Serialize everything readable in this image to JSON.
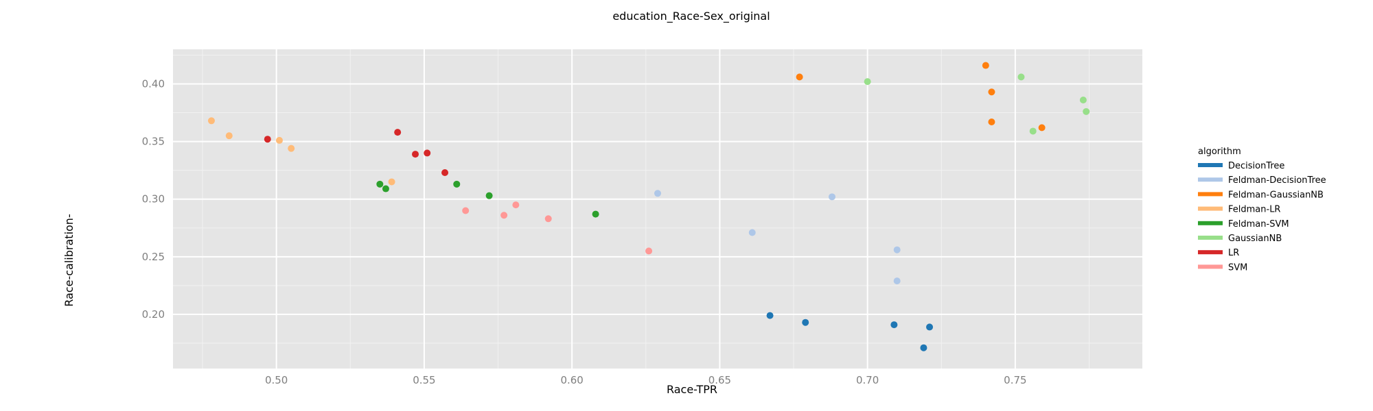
{
  "chart_data": {
    "type": "scatter",
    "title": "education_Race-Sex_original",
    "xlabel": "Race-TPR",
    "ylabel": "Race-calibration-",
    "xlim": [
      0.465,
      0.793
    ],
    "ylim": [
      0.153,
      0.43
    ],
    "x_ticks": [
      0.5,
      0.55,
      0.6,
      0.65,
      0.7,
      0.75
    ],
    "x_tick_labels": [
      "0.50",
      "0.55",
      "0.60",
      "0.65",
      "0.70",
      "0.75"
    ],
    "y_ticks": [
      0.2,
      0.25,
      0.3,
      0.35,
      0.4
    ],
    "y_tick_labels": [
      "0.20",
      "0.25",
      "0.30",
      "0.35",
      "0.40"
    ],
    "grid": true,
    "legend": {
      "title": "algorithm",
      "position": "right"
    },
    "series": [
      {
        "name": "DecisionTree",
        "color": "#1f77b4",
        "points": [
          [
            0.667,
            0.199
          ],
          [
            0.679,
            0.193
          ],
          [
            0.709,
            0.191
          ],
          [
            0.721,
            0.189
          ],
          [
            0.719,
            0.171
          ]
        ]
      },
      {
        "name": "Feldman-DecisionTree",
        "color": "#aec7e8",
        "points": [
          [
            0.629,
            0.305
          ],
          [
            0.661,
            0.271
          ],
          [
            0.688,
            0.302
          ],
          [
            0.71,
            0.256
          ],
          [
            0.71,
            0.229
          ]
        ]
      },
      {
        "name": "Feldman-GaussianNB",
        "color": "#ff7f0e",
        "points": [
          [
            0.677,
            0.406
          ],
          [
            0.74,
            0.416
          ],
          [
            0.742,
            0.393
          ],
          [
            0.742,
            0.367
          ],
          [
            0.759,
            0.362
          ]
        ]
      },
      {
        "name": "Feldman-LR",
        "color": "#ffbb78",
        "points": [
          [
            0.478,
            0.368
          ],
          [
            0.484,
            0.355
          ],
          [
            0.501,
            0.351
          ],
          [
            0.505,
            0.344
          ],
          [
            0.539,
            0.315
          ]
        ]
      },
      {
        "name": "Feldman-SVM",
        "color": "#2ca02c",
        "points": [
          [
            0.535,
            0.313
          ],
          [
            0.537,
            0.309
          ],
          [
            0.561,
            0.313
          ],
          [
            0.572,
            0.303
          ],
          [
            0.608,
            0.287
          ]
        ]
      },
      {
        "name": "GaussianNB",
        "color": "#98df8a",
        "points": [
          [
            0.7,
            0.402
          ],
          [
            0.752,
            0.406
          ],
          [
            0.773,
            0.386
          ],
          [
            0.774,
            0.376
          ],
          [
            0.756,
            0.359
          ]
        ]
      },
      {
        "name": "LR",
        "color": "#d62728",
        "points": [
          [
            0.497,
            0.352
          ],
          [
            0.541,
            0.358
          ],
          [
            0.547,
            0.339
          ],
          [
            0.551,
            0.34
          ],
          [
            0.557,
            0.323
          ]
        ]
      },
      {
        "name": "SVM",
        "color": "#ff9896",
        "points": [
          [
            0.564,
            0.29
          ],
          [
            0.577,
            0.286
          ],
          [
            0.581,
            0.295
          ],
          [
            0.592,
            0.283
          ],
          [
            0.626,
            0.255
          ]
        ]
      }
    ]
  }
}
